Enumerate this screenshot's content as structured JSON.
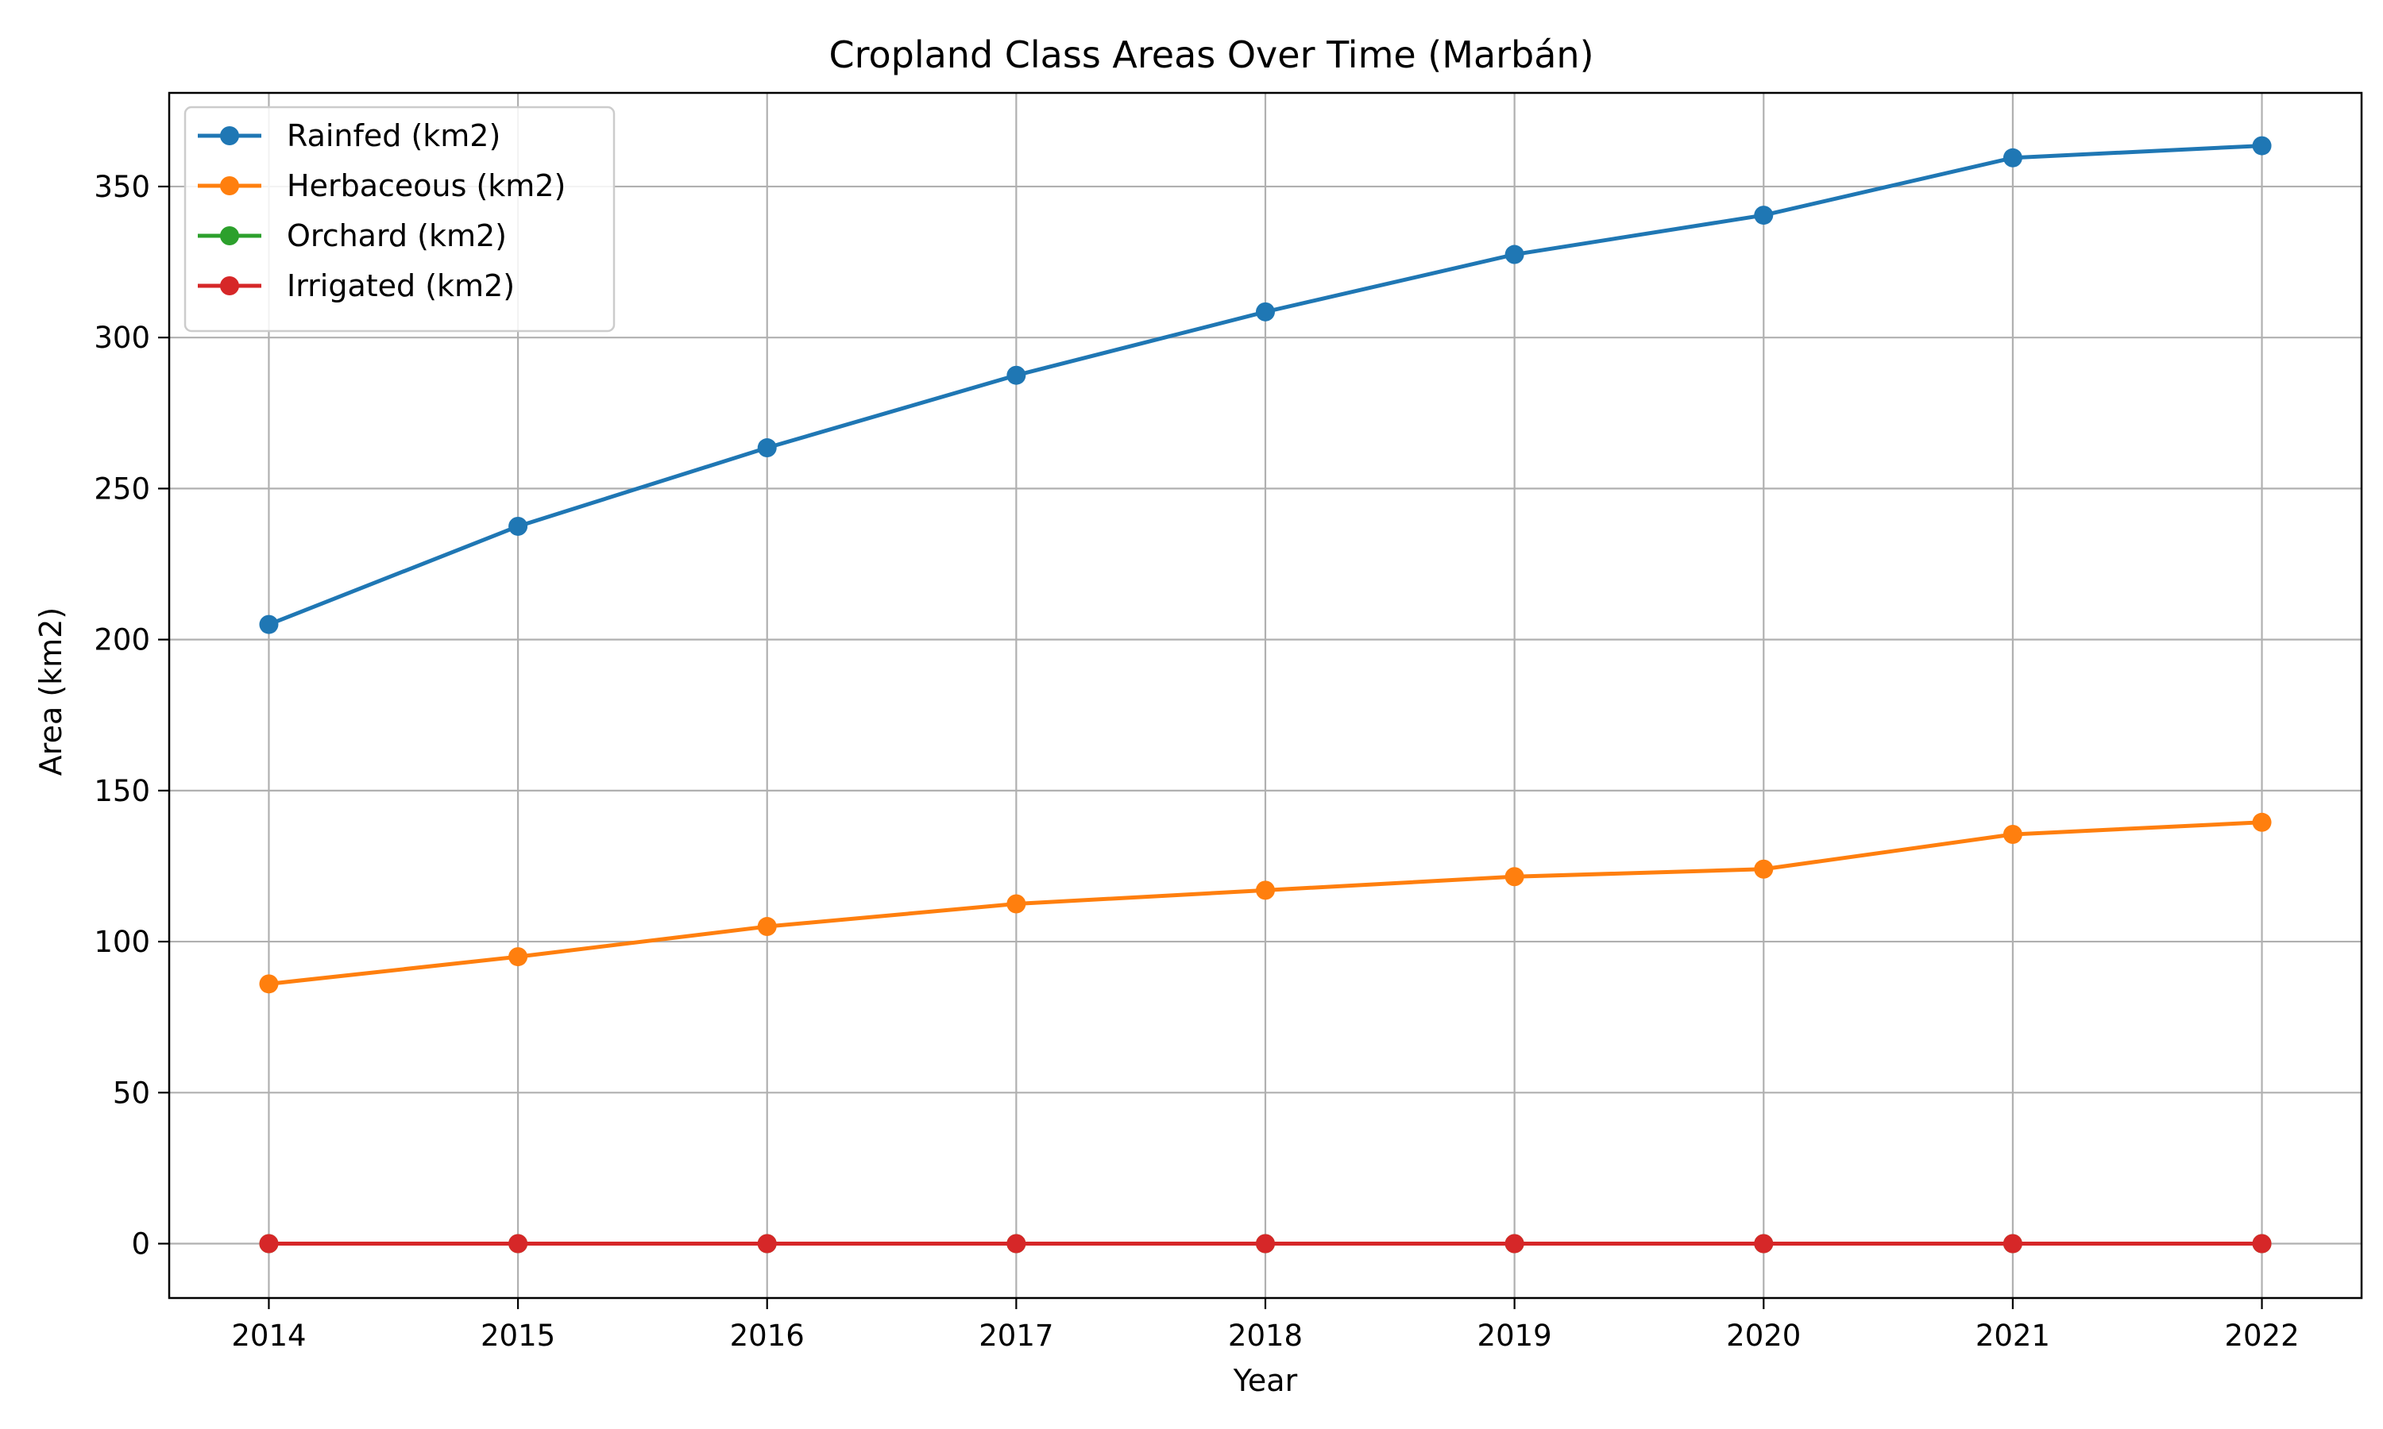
{
  "chart_data": {
    "type": "line",
    "title": "Cropland Class Areas Over Time (Marbán)",
    "xlabel": "Year",
    "ylabel": "Area (km2)",
    "x": [
      2014,
      2015,
      2016,
      2017,
      2018,
      2019,
      2020,
      2021,
      2022
    ],
    "xlim": [
      2013.6,
      2022.4
    ],
    "ylim": [
      -18,
      381
    ],
    "yticks": [
      0,
      50,
      100,
      150,
      200,
      250,
      300,
      350
    ],
    "grid": true,
    "legend_position": "top-left",
    "series": [
      {
        "name": "Rainfed (km2)",
        "color": "#1f77b4",
        "marker": "circle",
        "values": [
          205,
          237.5,
          263.5,
          287.5,
          308.5,
          327.5,
          340.5,
          359.5,
          363.5
        ]
      },
      {
        "name": "Herbaceous (km2)",
        "color": "#ff7f0e",
        "marker": "circle",
        "values": [
          86,
          95,
          105,
          112.5,
          117,
          121.5,
          124,
          135.5,
          139.5
        ]
      },
      {
        "name": "Orchard (km2)",
        "color": "#2ca02c",
        "marker": "circle",
        "values": [
          0,
          0,
          0,
          0,
          0,
          0,
          0,
          0,
          0
        ]
      },
      {
        "name": "Irrigated (km2)",
        "color": "#d62728",
        "marker": "circle",
        "values": [
          0,
          0,
          0,
          0,
          0,
          0,
          0,
          0,
          0
        ]
      }
    ]
  }
}
